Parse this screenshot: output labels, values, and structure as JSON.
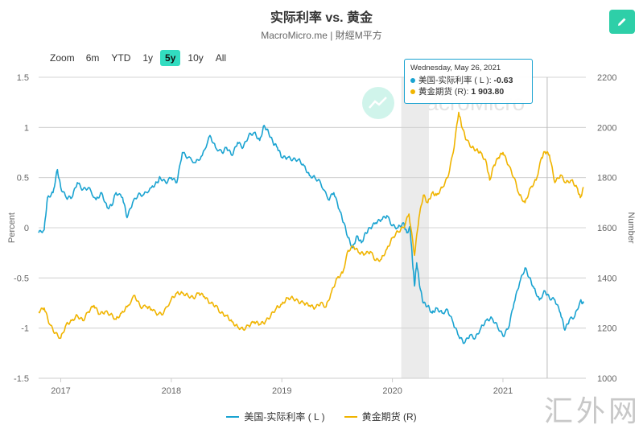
{
  "header": {
    "title": "实际利率 vs. 黄金",
    "subtitle": "MacroMicro.me | 財經M平方",
    "edit_icon": "pencil-icon"
  },
  "zoom": {
    "label": "Zoom",
    "buttons": [
      "6m",
      "YTD",
      "1y",
      "5y",
      "10y",
      "All"
    ],
    "active": "5y"
  },
  "tooltip": {
    "date": "Wednesday, May 26, 2021",
    "rows": [
      {
        "name": "美国-实际利率 ( L )",
        "value": "-0.63",
        "color": "#1aa3d1"
      },
      {
        "name": "黄金期货 (R)",
        "value": "1 903.80",
        "color": "#f0b400"
      }
    ]
  },
  "brand_watermark": "MacroMicro",
  "site_watermark": "汇外网",
  "chart_data": {
    "type": "line",
    "title": "实际利率 vs. 黄金",
    "x_ticks": [
      "2017",
      "2018",
      "2019",
      "2020",
      "2021"
    ],
    "x_range": [
      2016.8,
      2021.75
    ],
    "shaded_range": [
      2020.08,
      2020.33
    ],
    "crosshair_x": 2021.4,
    "left_axis": {
      "label": "Percent",
      "range": [
        -1.5,
        1.5
      ],
      "ticks": [
        "1.5",
        "1",
        "0.5",
        "0",
        "-0.5",
        "-1",
        "-1.5"
      ]
    },
    "right_axis": {
      "label": "Number",
      "range": [
        1000,
        2200
      ],
      "ticks": [
        "2200",
        "2000",
        "1800",
        "1600",
        "1400",
        "1200",
        "1000"
      ]
    },
    "series": [
      {
        "name": "美国-实际利率 ( L )",
        "axis": "left",
        "color": "#1aa3d1",
        "points": [
          [
            2016.8,
            -0.05
          ],
          [
            2016.85,
            -0.02
          ],
          [
            2016.88,
            0.3
          ],
          [
            2016.93,
            0.35
          ],
          [
            2016.97,
            0.58
          ],
          [
            2017.0,
            0.4
          ],
          [
            2017.05,
            0.3
          ],
          [
            2017.1,
            0.3
          ],
          [
            2017.15,
            0.45
          ],
          [
            2017.2,
            0.38
          ],
          [
            2017.25,
            0.4
          ],
          [
            2017.32,
            0.28
          ],
          [
            2017.37,
            0.35
          ],
          [
            2017.42,
            0.2
          ],
          [
            2017.46,
            0.22
          ],
          [
            2017.5,
            0.35
          ],
          [
            2017.56,
            0.3
          ],
          [
            2017.6,
            0.1
          ],
          [
            2017.65,
            0.25
          ],
          [
            2017.7,
            0.33
          ],
          [
            2017.75,
            0.33
          ],
          [
            2017.82,
            0.4
          ],
          [
            2017.87,
            0.45
          ],
          [
            2017.9,
            0.5
          ],
          [
            2017.95,
            0.45
          ],
          [
            2018.0,
            0.5
          ],
          [
            2018.05,
            0.45
          ],
          [
            2018.1,
            0.75
          ],
          [
            2018.15,
            0.7
          ],
          [
            2018.22,
            0.65
          ],
          [
            2018.28,
            0.72
          ],
          [
            2018.35,
            0.92
          ],
          [
            2018.4,
            0.8
          ],
          [
            2018.46,
            0.75
          ],
          [
            2018.5,
            0.8
          ],
          [
            2018.55,
            0.72
          ],
          [
            2018.6,
            0.85
          ],
          [
            2018.65,
            0.8
          ],
          [
            2018.7,
            0.92
          ],
          [
            2018.75,
            0.95
          ],
          [
            2018.8,
            0.87
          ],
          [
            2018.84,
            1.02
          ],
          [
            2018.88,
            0.95
          ],
          [
            2018.92,
            0.85
          ],
          [
            2018.96,
            0.8
          ],
          [
            2019.0,
            0.7
          ],
          [
            2019.05,
            0.7
          ],
          [
            2019.1,
            0.68
          ],
          [
            2019.15,
            0.68
          ],
          [
            2019.2,
            0.62
          ],
          [
            2019.25,
            0.52
          ],
          [
            2019.3,
            0.5
          ],
          [
            2019.35,
            0.45
          ],
          [
            2019.42,
            0.28
          ],
          [
            2019.47,
            0.35
          ],
          [
            2019.52,
            0.18
          ],
          [
            2019.56,
            0.05
          ],
          [
            2019.6,
            -0.1
          ],
          [
            2019.64,
            -0.2
          ],
          [
            2019.68,
            -0.08
          ],
          [
            2019.72,
            -0.15
          ],
          [
            2019.76,
            -0.05
          ],
          [
            2019.8,
            0.0
          ],
          [
            2019.85,
            0.05
          ],
          [
            2019.9,
            0.08
          ],
          [
            2019.95,
            0.12
          ],
          [
            2020.0,
            0.02
          ],
          [
            2020.05,
            0.0
          ],
          [
            2020.1,
            0.05
          ],
          [
            2020.13,
            -0.05
          ],
          [
            2020.16,
            0.0
          ],
          [
            2020.18,
            -0.3
          ],
          [
            2020.2,
            -0.58
          ],
          [
            2020.22,
            -0.35
          ],
          [
            2020.25,
            -0.6
          ],
          [
            2020.28,
            -0.75
          ],
          [
            2020.32,
            -0.78
          ],
          [
            2020.36,
            -0.85
          ],
          [
            2020.4,
            -0.8
          ],
          [
            2020.45,
            -0.85
          ],
          [
            2020.5,
            -0.82
          ],
          [
            2020.55,
            -0.95
          ],
          [
            2020.6,
            -1.08
          ],
          [
            2020.65,
            -1.15
          ],
          [
            2020.7,
            -1.07
          ],
          [
            2020.75,
            -1.1
          ],
          [
            2020.8,
            -1.0
          ],
          [
            2020.85,
            -0.92
          ],
          [
            2020.9,
            -0.9
          ],
          [
            2020.95,
            -0.98
          ],
          [
            2021.0,
            -1.08
          ],
          [
            2021.05,
            -1.0
          ],
          [
            2021.1,
            -0.75
          ],
          [
            2021.15,
            -0.55
          ],
          [
            2021.2,
            -0.4
          ],
          [
            2021.24,
            -0.5
          ],
          [
            2021.28,
            -0.6
          ],
          [
            2021.33,
            -0.72
          ],
          [
            2021.38,
            -0.63
          ],
          [
            2021.42,
            -0.7
          ],
          [
            2021.47,
            -0.72
          ],
          [
            2021.52,
            -0.85
          ],
          [
            2021.56,
            -1.02
          ],
          [
            2021.6,
            -0.92
          ],
          [
            2021.65,
            -0.88
          ],
          [
            2021.7,
            -0.73
          ],
          [
            2021.73,
            -0.75
          ]
        ]
      },
      {
        "name": "黄金期货 (R)",
        "axis": "right",
        "color": "#f0b400",
        "points": [
          [
            2016.8,
            1265
          ],
          [
            2016.85,
            1280
          ],
          [
            2016.9,
            1215
          ],
          [
            2016.95,
            1180
          ],
          [
            2017.0,
            1160
          ],
          [
            2017.05,
            1215
          ],
          [
            2017.1,
            1230
          ],
          [
            2017.15,
            1250
          ],
          [
            2017.2,
            1230
          ],
          [
            2017.25,
            1265
          ],
          [
            2017.3,
            1290
          ],
          [
            2017.35,
            1255
          ],
          [
            2017.4,
            1265
          ],
          [
            2017.45,
            1255
          ],
          [
            2017.5,
            1235
          ],
          [
            2017.55,
            1260
          ],
          [
            2017.6,
            1285
          ],
          [
            2017.67,
            1330
          ],
          [
            2017.72,
            1285
          ],
          [
            2017.78,
            1285
          ],
          [
            2017.82,
            1275
          ],
          [
            2017.88,
            1255
          ],
          [
            2017.93,
            1260
          ],
          [
            2018.0,
            1315
          ],
          [
            2018.05,
            1340
          ],
          [
            2018.1,
            1340
          ],
          [
            2018.15,
            1330
          ],
          [
            2018.2,
            1320
          ],
          [
            2018.25,
            1340
          ],
          [
            2018.3,
            1325
          ],
          [
            2018.35,
            1300
          ],
          [
            2018.4,
            1290
          ],
          [
            2018.45,
            1260
          ],
          [
            2018.5,
            1250
          ],
          [
            2018.55,
            1225
          ],
          [
            2018.6,
            1205
          ],
          [
            2018.65,
            1195
          ],
          [
            2018.7,
            1210
          ],
          [
            2018.75,
            1225
          ],
          [
            2018.8,
            1215
          ],
          [
            2018.85,
            1225
          ],
          [
            2018.9,
            1250
          ],
          [
            2018.95,
            1280
          ],
          [
            2019.0,
            1295
          ],
          [
            2019.05,
            1320
          ],
          [
            2019.1,
            1320
          ],
          [
            2019.15,
            1305
          ],
          [
            2019.2,
            1300
          ],
          [
            2019.25,
            1290
          ],
          [
            2019.3,
            1280
          ],
          [
            2019.35,
            1300
          ],
          [
            2019.4,
            1285
          ],
          [
            2019.45,
            1345
          ],
          [
            2019.5,
            1400
          ],
          [
            2019.55,
            1420
          ],
          [
            2019.6,
            1510
          ],
          [
            2019.65,
            1525
          ],
          [
            2019.7,
            1500
          ],
          [
            2019.75,
            1495
          ],
          [
            2019.8,
            1505
          ],
          [
            2019.85,
            1470
          ],
          [
            2019.9,
            1475
          ],
          [
            2019.95,
            1515
          ],
          [
            2020.0,
            1560
          ],
          [
            2020.05,
            1585
          ],
          [
            2020.1,
            1600
          ],
          [
            2020.15,
            1655
          ],
          [
            2020.2,
            1490
          ],
          [
            2020.24,
            1640
          ],
          [
            2020.28,
            1730
          ],
          [
            2020.32,
            1700
          ],
          [
            2020.36,
            1740
          ],
          [
            2020.4,
            1730
          ],
          [
            2020.45,
            1760
          ],
          [
            2020.5,
            1800
          ],
          [
            2020.55,
            1900
          ],
          [
            2020.6,
            2060
          ],
          [
            2020.63,
            2000
          ],
          [
            2020.67,
            1950
          ],
          [
            2020.72,
            1920
          ],
          [
            2020.76,
            1910
          ],
          [
            2020.8,
            1900
          ],
          [
            2020.85,
            1860
          ],
          [
            2020.88,
            1790
          ],
          [
            2020.92,
            1850
          ],
          [
            2020.96,
            1880
          ],
          [
            2021.0,
            1900
          ],
          [
            2021.05,
            1850
          ],
          [
            2021.1,
            1800
          ],
          [
            2021.15,
            1730
          ],
          [
            2021.2,
            1700
          ],
          [
            2021.25,
            1760
          ],
          [
            2021.3,
            1790
          ],
          [
            2021.35,
            1880
          ],
          [
            2021.38,
            1904
          ],
          [
            2021.42,
            1890
          ],
          [
            2021.47,
            1780
          ],
          [
            2021.52,
            1810
          ],
          [
            2021.57,
            1780
          ],
          [
            2021.62,
            1790
          ],
          [
            2021.67,
            1760
          ],
          [
            2021.7,
            1720
          ],
          [
            2021.73,
            1760
          ]
        ]
      }
    ]
  },
  "legend": [
    {
      "label": "美国-实际利率 ( L )",
      "color": "#1aa3d1"
    },
    {
      "label": "黄金期货 (R)",
      "color": "#f0b400"
    }
  ]
}
